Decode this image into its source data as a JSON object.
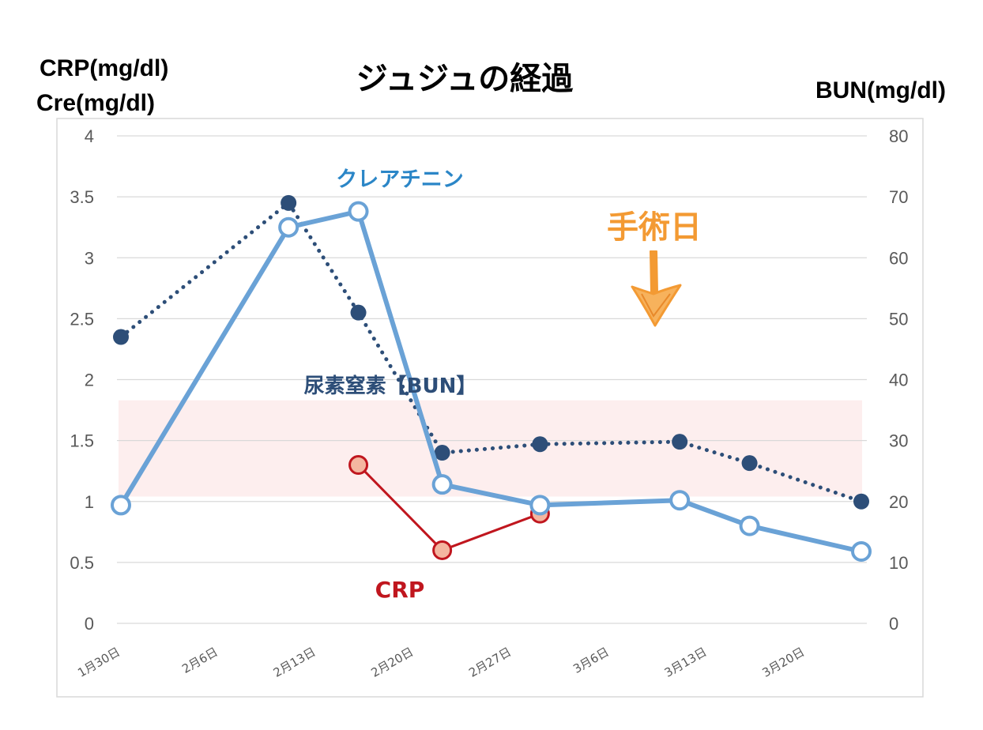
{
  "colors": {
    "crp": "#c0161e",
    "crp_marker_fill": "#f4b6a0",
    "creatinine": "#6aa2d6",
    "bun": "#2d4e78",
    "normal_band": "#fdeeee",
    "arrow": "#f39a33",
    "axis_title_blue": "#1f5b8a",
    "creatinine_label": "#2b86c7"
  },
  "chart_data": {
    "type": "line",
    "title": "ジュジュの経過",
    "y_left_title_lines": [
      "CRP(mg/dl)",
      "Cre(mg/dl)"
    ],
    "y_right_title": "BUN(mg/dl)",
    "x_ticks": [
      "1月30日",
      "2月6日",
      "2月13日",
      "2月20日",
      "2月27日",
      "3月6日",
      "3月13日",
      "3月20日"
    ],
    "x_tick_days": [
      0,
      7,
      14,
      21,
      28,
      35,
      42,
      49
    ],
    "x_range_days": [
      0,
      53
    ],
    "y_left_ticks": [
      "4",
      "3.5",
      "3",
      "2.5",
      "2",
      "1.5",
      "1",
      "0.5",
      "0"
    ],
    "y_left_range": [
      0,
      4
    ],
    "y_right_ticks": [
      "80",
      "70",
      "60",
      "50",
      "40",
      "30",
      "20",
      "10",
      "0"
    ],
    "y_right_range": [
      0,
      80
    ],
    "grid": true,
    "normal_range_band_left_axis": [
      1.04,
      1.83
    ],
    "series": [
      {
        "name": "クレアチニン",
        "axis": "left",
        "x": [
          "1月30日",
          "2月12日",
          "2月17日",
          "2月22日",
          "2月29日",
          "3月11日",
          "3月16日",
          "3月23日"
        ],
        "x_days": [
          0,
          12,
          17,
          23,
          30,
          40,
          45,
          53
        ],
        "values": [
          0.97,
          3.25,
          3.38,
          1.14,
          0.97,
          1.01,
          0.8,
          0.59
        ]
      },
      {
        "name": "尿素窒素【BUN】",
        "axis": "right",
        "x": [
          "1月30日",
          "2月12日",
          "2月17日",
          "2月22日",
          "2月29日",
          "3月11日",
          "3月16日",
          "3月23日"
        ],
        "x_days": [
          0,
          12,
          17,
          23,
          30,
          40,
          45,
          53
        ],
        "values": [
          47,
          69,
          51,
          28,
          29.4,
          29.8,
          26.3,
          20
        ]
      },
      {
        "name": "CRP",
        "axis": "left",
        "x": [
          "2月17日",
          "2月22日",
          "2月29日"
        ],
        "x_days": [
          17,
          23,
          30
        ],
        "values": [
          1.3,
          0.6,
          0.9
        ]
      }
    ],
    "annotations": {
      "creatinine_label": "クレアチニン",
      "bun_label": "尿素窒素【BUN】",
      "crp_label": "CRP",
      "surgery_label": "手術日"
    }
  }
}
